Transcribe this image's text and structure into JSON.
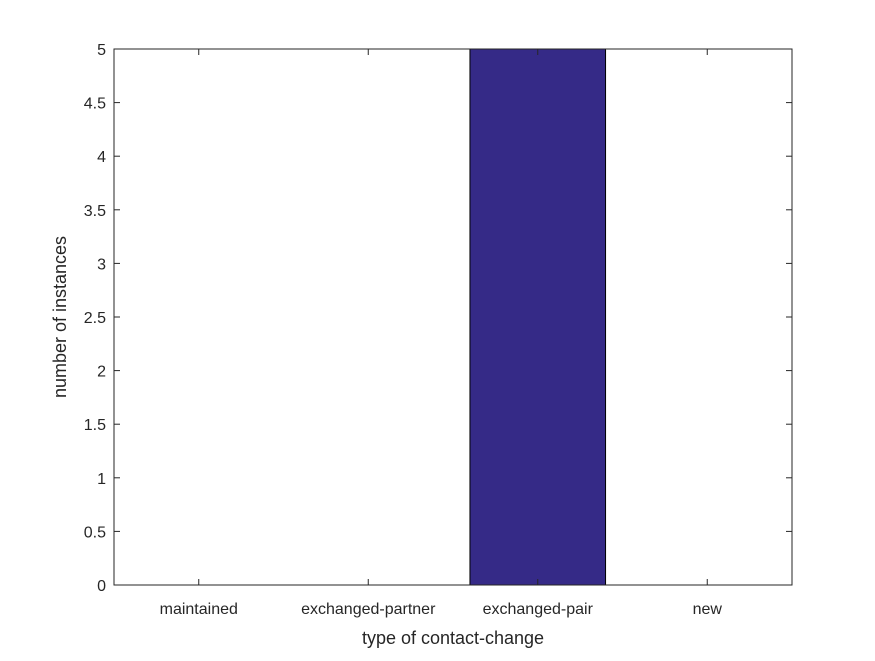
{
  "chart_data": {
    "type": "bar",
    "categories": [
      "maintained",
      "exchanged-partner",
      "exchanged-pair",
      "new"
    ],
    "values": [
      0,
      0,
      5,
      0
    ],
    "xlabel": "type of contact-change",
    "ylabel": "number of instances",
    "ylim": [
      0,
      5
    ],
    "yticks": [
      "0",
      "0.5",
      "1",
      "1.5",
      "2",
      "2.5",
      "3",
      "3.5",
      "4",
      "4.5",
      "5"
    ],
    "grid": false,
    "bar_color": "#352a87"
  }
}
